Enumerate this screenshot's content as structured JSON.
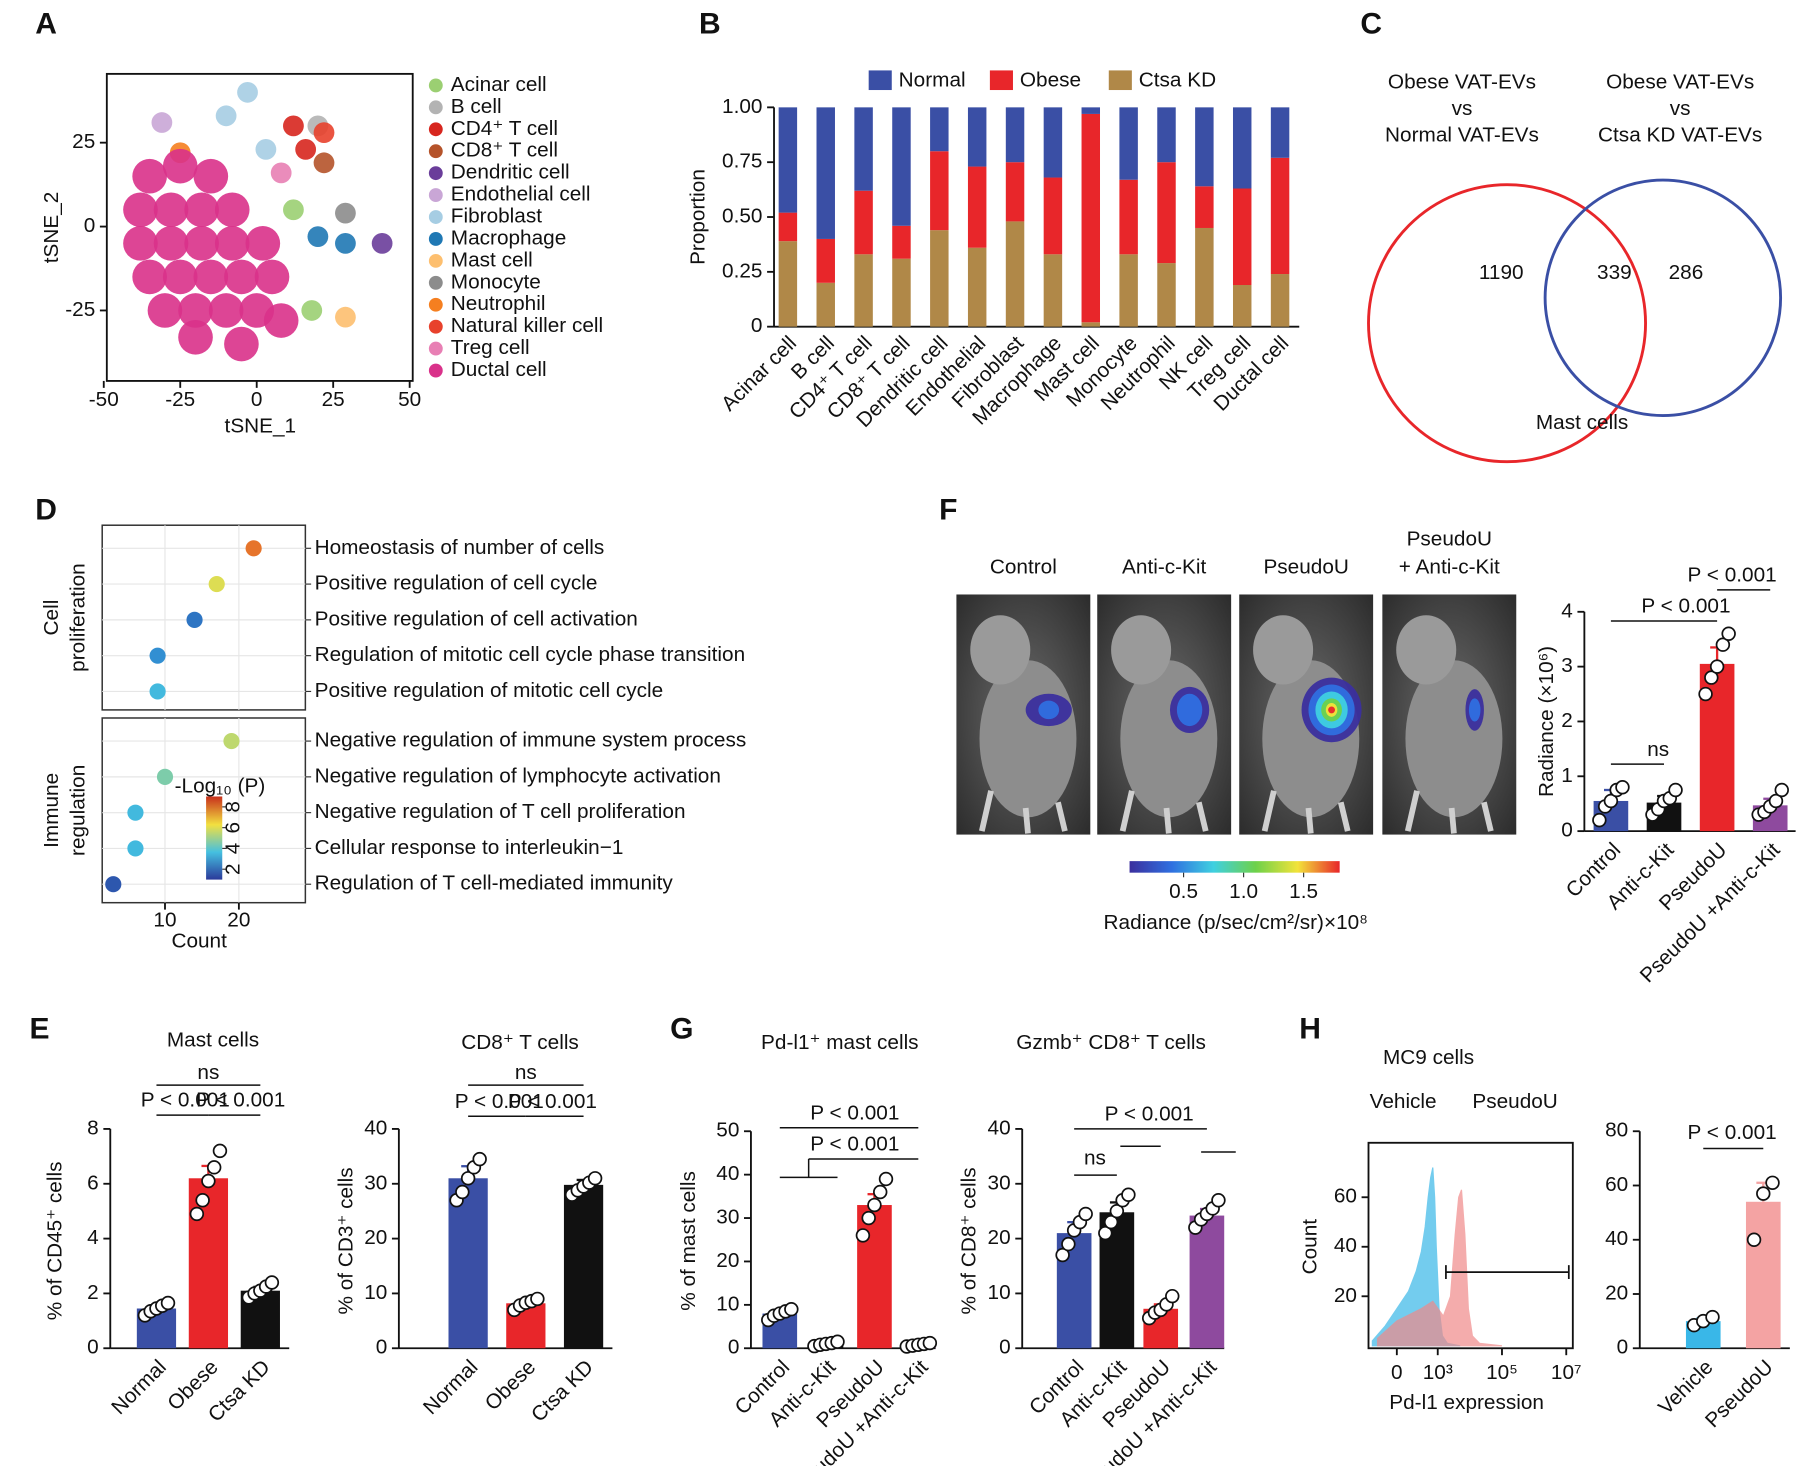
{
  "chart_data": [
    {
      "type": "scatter",
      "panel": "A",
      "xlabel": "tSNE_1",
      "ylabel": "tSNE_2",
      "xlim": [
        -49,
        51
      ],
      "xticks": [
        -50,
        -25,
        0,
        25,
        50
      ],
      "ylim": [
        -46,
        45.5
      ],
      "yticks": [
        -25,
        0,
        25
      ],
      "series": [
        {
          "name": "Acinar cell",
          "color": "#9bcf72",
          "x": [
            18,
            12
          ],
          "y": [
            -25,
            5
          ]
        },
        {
          "name": "B cell",
          "color": "#b3b3b3",
          "x": [
            20
          ],
          "y": [
            30
          ]
        },
        {
          "name": "CD4⁺ T cell",
          "color": "#d7261e",
          "x": [
            16,
            12
          ],
          "y": [
            23,
            30
          ]
        },
        {
          "name": "CD8⁺ T cell",
          "color": "#b5532a",
          "x": [
            22
          ],
          "y": [
            19
          ]
        },
        {
          "name": "Dendritic cell",
          "color": "#6a3d9a",
          "x": [
            41
          ],
          "y": [
            -5
          ]
        },
        {
          "name": "Endothelial cell",
          "color": "#c9a6d6",
          "x": [
            -31
          ],
          "y": [
            31
          ]
        },
        {
          "name": "Fibroblast",
          "color": "#a6cde3",
          "x": [
            -10,
            -3,
            3
          ],
          "y": [
            33,
            40,
            23
          ]
        },
        {
          "name": "Macrophage",
          "color": "#1f78b4",
          "x": [
            20,
            29
          ],
          "y": [
            -3,
            -5
          ]
        },
        {
          "name": "Mast cell",
          "color": "#fdbf6f",
          "x": [
            29
          ],
          "y": [
            -27
          ]
        },
        {
          "name": "Monocyte",
          "color": "#8c8c8c",
          "x": [
            29
          ],
          "y": [
            4
          ]
        },
        {
          "name": "Neutrophil",
          "color": "#f57f20",
          "x": [
            -25
          ],
          "y": [
            22
          ]
        },
        {
          "name": "Natural killer cell",
          "color": "#e8412c",
          "x": [
            22
          ],
          "y": [
            28
          ]
        },
        {
          "name": "Treg cell",
          "color": "#e87fb4",
          "x": [
            8
          ],
          "y": [
            16
          ]
        },
        {
          "name": "Ductal cell",
          "color": "#d9318a",
          "x": [
            -35,
            -25,
            -15,
            -38,
            -28,
            -18,
            -8,
            -38,
            -28,
            -18,
            -8,
            2,
            -35,
            -25,
            -15,
            -5,
            5,
            -30,
            -20,
            -10,
            0,
            8,
            -20,
            -5
          ],
          "y": [
            15,
            18,
            15,
            5,
            5,
            5,
            5,
            -5,
            -5,
            -5,
            -5,
            -5,
            -15,
            -15,
            -15,
            -15,
            -15,
            -25,
            -25,
            -25,
            -25,
            -28,
            -33,
            -35
          ]
        }
      ]
    },
    {
      "type": "stacked-bar",
      "panel": "B",
      "ylabel": "Proportion",
      "categories": [
        "Acinar cell",
        "B cell",
        "CD4⁺ T cell",
        "CD8⁺ T cell",
        "Dendritic cell",
        "Endothelial",
        "Fibroblast",
        "Macrophage",
        "Mast cell",
        "Monocyte",
        "Neutrophil",
        "NK cell",
        "Treg cell",
        "Ductal cell"
      ],
      "series": [
        {
          "name": "Normal",
          "color": "#3a4fa5",
          "values": [
            0.48,
            0.6,
            0.38,
            0.54,
            0.2,
            0.27,
            0.25,
            0.32,
            0.03,
            0.33,
            0.25,
            0.36,
            0.37,
            0.23
          ]
        },
        {
          "name": "Obese",
          "color": "#e8262a",
          "values": [
            0.13,
            0.2,
            0.29,
            0.15,
            0.36,
            0.37,
            0.27,
            0.35,
            0.95,
            0.34,
            0.46,
            0.19,
            0.44,
            0.53
          ]
        },
        {
          "name": "Ctsa KD",
          "color": "#b08848",
          "values": [
            0.39,
            0.2,
            0.33,
            0.31,
            0.44,
            0.36,
            0.48,
            0.33,
            0.02,
            0.33,
            0.29,
            0.45,
            0.19,
            0.24
          ]
        }
      ],
      "ylim": [
        0,
        1
      ],
      "yticks": [
        {
          "value": 0,
          "label": "0"
        },
        {
          "value": 0.25,
          "label": "0.25"
        },
        {
          "value": 0.5,
          "label": "0.50"
        },
        {
          "value": 0.75,
          "label": "0.75"
        },
        {
          "value": 1,
          "label": "1.00"
        }
      ]
    },
    {
      "type": "venn",
      "panel": "C",
      "sets": [
        {
          "label": [
            "Obese VAT-EVs",
            "vs",
            "Normal VAT-EVs"
          ],
          "color": "#e8262a"
        },
        {
          "label": [
            "Obese VAT-EVs",
            "vs",
            "Ctsa KD VAT-EVs"
          ],
          "color": "#3a4fa5"
        }
      ],
      "counts": [
        1190,
        339,
        286
      ],
      "title": "Mast cells"
    },
    {
      "type": "dot",
      "panel": "D",
      "xlabel": "Count",
      "xlim": [
        1.5,
        29
      ],
      "xticks": [
        10,
        20
      ],
      "grid": true,
      "legend_title": "-Log₁₀ (P)",
      "clim": [
        1,
        9
      ],
      "cticks": [
        2,
        4,
        6,
        8
      ],
      "groups": [
        {
          "label": [
            "Cell",
            "proliferation"
          ],
          "terms": [
            "Homeostasis of number of cells",
            "Positive regulation of cell cycle",
            "Positive regulation of cell activation",
            "Regulation of mitotic cell cycle phase transition",
            "Positive regulation of mitotic cell cycle"
          ],
          "counts": [
            22,
            17,
            14,
            9,
            9
          ],
          "logp": [
            8,
            6,
            2,
            2.5,
            3.5
          ]
        },
        {
          "label": [
            "Immune",
            "regulation"
          ],
          "terms": [
            "Negative regulation of immune system process",
            "Negative regulation of lymphocyte activation",
            "Negative regulation of T cell proliferation",
            "Cellular response to interleukin−1",
            "Regulation of T cell-mediated immunity"
          ],
          "counts": [
            19,
            10,
            6,
            6,
            3
          ],
          "logp": [
            5.5,
            4.5,
            3.5,
            3.5,
            1.5
          ]
        }
      ]
    },
    {
      "type": "bar",
      "panel": "E",
      "title": "Mast cells",
      "ylabel": "% of CD45⁺ cells",
      "categories": [
        "Normal",
        "Obese",
        "Ctsa KD"
      ],
      "colors": [
        "#3a4fa5",
        "#e8262a",
        "#111111"
      ],
      "values": [
        1.45,
        6.2,
        2.1
      ],
      "errors": [
        0.12,
        0.45,
        0.14
      ],
      "points": [
        [
          1.2,
          1.35,
          1.45,
          1.55,
          1.65
        ],
        [
          4.9,
          5.4,
          6.1,
          6.6,
          7.2
        ],
        [
          1.85,
          2.0,
          2.1,
          2.25,
          2.4
        ]
      ],
      "ylim": [
        0,
        8
      ],
      "yticks": [
        0,
        2,
        4,
        6,
        8
      ],
      "annotations": [
        "ns",
        "P < 0.001",
        "P < 0.001"
      ]
    },
    {
      "type": "bar",
      "title": "CD8⁺ T cells",
      "ylabel": "% of CD3⁺ cells",
      "categories": [
        "Normal",
        "Obese",
        "Ctsa KD"
      ],
      "colors": [
        "#3a4fa5",
        "#e8262a",
        "#111111"
      ],
      "values": [
        31,
        8.2,
        29.8
      ],
      "errors": [
        2.2,
        0.7,
        0.9
      ],
      "points": [
        [
          27,
          28.5,
          31,
          33,
          34.5
        ],
        [
          7,
          7.8,
          8.3,
          8.6,
          9
        ],
        [
          28,
          28.8,
          29.5,
          30.2,
          31
        ]
      ],
      "ylim": [
        0,
        40
      ],
      "yticks": [
        0,
        10,
        20,
        30,
        40
      ],
      "annotations": [
        "ns",
        "P < 0.001",
        "P < 0.001"
      ]
    },
    {
      "type": "image",
      "panel": "F",
      "labels": [
        [
          "Control"
        ],
        [
          "Anti-c-Kit"
        ],
        [
          "PseudoU"
        ],
        [
          "PseudoU",
          "+ Anti-c-Kit"
        ]
      ],
      "colorbar": {
        "label": "Radiance (p/sec/cm²/sr)×10⁸",
        "clim": [
          0.05,
          1.8
        ],
        "ticks": [
          0.5,
          {
            "value": 1,
            "label": "1.0"
          },
          1.5
        ]
      }
    },
    {
      "type": "bar",
      "ylabel": "Radiance (×10⁶)",
      "categories": [
        "Control",
        "Anti-c-Kit",
        "PseudoU",
        "PseudoU +Anti-c-Kit"
      ],
      "colors": [
        "#3a4fa5",
        "#111111",
        "#e8262a",
        "#8e4a9e"
      ],
      "values": [
        0.55,
        0.52,
        3.05,
        0.47
      ],
      "errors": [
        0.2,
        0.12,
        0.3,
        0.12
      ],
      "points": [
        [
          0.2,
          0.45,
          0.55,
          0.75,
          0.8
        ],
        [
          0.3,
          0.4,
          0.55,
          0.6,
          0.75
        ],
        [
          2.5,
          2.8,
          3.0,
          3.4,
          3.6
        ],
        [
          0.3,
          0.35,
          0.45,
          0.55,
          0.75
        ]
      ],
      "ylim": [
        0,
        4
      ],
      "yticks": [
        0,
        1,
        2,
        3,
        4
      ],
      "annotations": [
        "ns",
        "P < 0.001",
        "P < 0.001"
      ]
    },
    {
      "type": "bar",
      "panel": "G",
      "title": "Pd-l1⁺ mast cells",
      "ylabel": "% of mast cells",
      "categories": [
        "Control",
        "Anti-c-Kit",
        "PseudoU",
        "PseudoU +Anti-c-Kit"
      ],
      "colors": [
        "#3a4fa5",
        "#111111",
        "#e8262a",
        "#8e4a9e"
      ],
      "values": [
        8,
        1,
        33,
        0.8
      ],
      "errors": [
        0.8,
        0.3,
        2.5,
        0.3
      ],
      "points": [
        [
          6.5,
          7.5,
          8,
          8.5,
          9
        ],
        [
          0.5,
          0.8,
          1,
          1.2,
          1.5
        ],
        [
          26,
          30,
          33,
          36,
          39
        ],
        [
          0.4,
          0.6,
          0.8,
          1,
          1.2
        ]
      ],
      "ylim": [
        0,
        50
      ],
      "yticks": [
        0,
        10,
        20,
        30,
        40,
        50
      ],
      "annotations": [
        "P < 0.001",
        "P < 0.001"
      ]
    },
    {
      "type": "bar",
      "title": "Gzmb⁺ CD8⁺ T cells",
      "ylabel": "% of CD8⁺ cells",
      "categories": [
        "Control",
        "Anti-c-Kit",
        "PseudoU",
        "PseudoU +Anti-c-Kit"
      ],
      "colors": [
        "#3a4fa5",
        "#111111",
        "#e8262a",
        "#8e4a9e"
      ],
      "values": [
        21,
        24.8,
        7.2,
        24.2
      ],
      "errors": [
        2,
        1.8,
        0.8,
        1.2
      ],
      "points": [
        [
          17,
          19,
          21.5,
          23,
          24.5
        ],
        [
          21,
          23,
          25,
          27,
          28
        ],
        [
          5.5,
          6.5,
          7,
          8,
          9.5
        ],
        [
          22,
          23.5,
          24.5,
          25.5,
          27
        ]
      ],
      "ylim": [
        0,
        40
      ],
      "yticks": [
        0,
        10,
        20,
        30,
        40
      ],
      "annotations": [
        "P < 0.001",
        "ns"
      ]
    },
    {
      "type": "area",
      "panel": "H",
      "title": "MC9 cells",
      "xlabel": "Pd-l1 expression",
      "ylabel": "Count",
      "xscale": "biexponential",
      "xlim": [
        -400,
        16000000
      ],
      "xticks": [
        0,
        {
          "value": 1000,
          "label": "10³"
        },
        {
          "value": 100000,
          "label": "10⁵"
        },
        {
          "value": 10000000,
          "label": "10⁷"
        }
      ],
      "ylim": [
        -1,
        82
      ],
      "yticks": [
        20,
        40,
        60
      ],
      "gate": [
        1800,
        12000000
      ],
      "series": [
        {
          "name": "Vehicle",
          "color": "#39b7e8",
          "x": [
            -300,
            -100,
            0,
            100,
            200,
            300,
            400,
            500,
            600,
            700,
            800,
            900,
            1100,
            1400,
            2000,
            5000
          ],
          "values": [
            2,
            8,
            15,
            22,
            30,
            38,
            48,
            60,
            68,
            72,
            60,
            40,
            15,
            4,
            1,
            0
          ]
        },
        {
          "name": "PseudoU",
          "color": "#f08a8a",
          "x": [
            -200,
            0,
            300,
            700,
            1500,
            2500,
            3500,
            4500,
            5500,
            7000,
            9000,
            12000,
            20000,
            100000
          ],
          "values": [
            3,
            10,
            15,
            18,
            12,
            20,
            45,
            60,
            63,
            45,
            15,
            4,
            1,
            0
          ]
        }
      ]
    },
    {
      "type": "bar",
      "categories": [
        "Vehicle",
        "PseudoU"
      ],
      "colors": [
        "#39b7e8",
        "#f4a3a3"
      ],
      "values": [
        10,
        54
      ],
      "errors": [
        1,
        7
      ],
      "points": [
        [
          8.5,
          10,
          11.5
        ],
        [
          40,
          57,
          61
        ]
      ],
      "ylim": [
        0,
        80
      ],
      "yticks": [
        0,
        20,
        40,
        60,
        80
      ],
      "annotations": [
        "P < 0.001"
      ]
    }
  ]
}
